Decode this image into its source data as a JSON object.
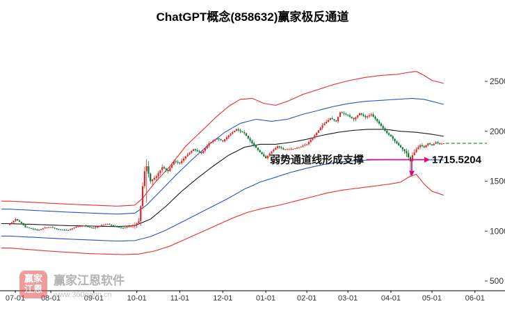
{
  "title": "ChatGPT概念(858632)赢家极反通道",
  "watermark": {
    "brand": "赢家江恩软件",
    "url": "www.360gann.cn",
    "logo_line1": "赢家",
    "logo_line2": "江恩"
  },
  "annotation": {
    "support_text": "弱势通道线形成支撑",
    "support_value_label": "1715.5204",
    "color": "#e5007d"
  },
  "axis": {
    "y_ticks": [
      2500,
      2000,
      1500,
      1000,
      500
    ],
    "x_labels": [
      "07-01",
      "08-01",
      "09-01",
      "10-01",
      "11-01",
      "12-01",
      "01-01",
      "02-01",
      "03-01",
      "04-01",
      "05-01",
      "06-01"
    ],
    "x_label_days": [
      0,
      21,
      43,
      65,
      87,
      109,
      131,
      152,
      173,
      195,
      216,
      238
    ]
  },
  "colors": {
    "up": "#dc2a2a",
    "down": "#0c7a33",
    "axis_text": "#333333",
    "axis_line": "#000000",
    "last_price_line": "#12a12a"
  },
  "chart_data": {
    "type": "candlestick",
    "title": "ChatGPT概念(858632)赢家极反通道",
    "ylim": [
      500,
      2700
    ],
    "x_axis_labels": [
      "07-01",
      "08-01",
      "09-01",
      "10-01",
      "11-01",
      "12-01",
      "01-01",
      "02-01",
      "03-01",
      "04-01",
      "05-01",
      "06-01"
    ],
    "support_level": 1715.5204,
    "last_price_line": 1880,
    "close_control_points": [
      [
        0,
        1070
      ],
      [
        3,
        1120
      ],
      [
        6,
        1080
      ],
      [
        8,
        1040
      ],
      [
        12,
        1020
      ],
      [
        15,
        1010
      ],
      [
        18,
        1035
      ],
      [
        21,
        1040
      ],
      [
        25,
        1015
      ],
      [
        30,
        1010
      ],
      [
        34,
        1045
      ],
      [
        38,
        1055
      ],
      [
        41,
        1035
      ],
      [
        43,
        1030
      ],
      [
        47,
        1060
      ],
      [
        50,
        1070
      ],
      [
        54,
        1045
      ],
      [
        58,
        1030
      ],
      [
        61,
        1050
      ],
      [
        64,
        1060
      ],
      [
        66,
        1100
      ],
      [
        67,
        1250
      ],
      [
        68,
        1450
      ],
      [
        69,
        1600
      ],
      [
        70,
        1650
      ],
      [
        72,
        1500
      ],
      [
        75,
        1550
      ],
      [
        78,
        1640
      ],
      [
        81,
        1600
      ],
      [
        84,
        1700
      ],
      [
        87,
        1680
      ],
      [
        90,
        1750
      ],
      [
        94,
        1820
      ],
      [
        98,
        1780
      ],
      [
        102,
        1880
      ],
      [
        106,
        1930
      ],
      [
        109,
        1900
      ],
      [
        112,
        1960
      ],
      [
        116,
        2020
      ],
      [
        120,
        1980
      ],
      [
        124,
        1880
      ],
      [
        128,
        1790
      ],
      [
        131,
        1730
      ],
      [
        134,
        1800
      ],
      [
        137,
        1850
      ],
      [
        140,
        1820
      ],
      [
        144,
        1820
      ],
      [
        148,
        1840
      ],
      [
        152,
        1870
      ],
      [
        156,
        1960
      ],
      [
        160,
        2060
      ],
      [
        164,
        2130
      ],
      [
        167,
        2100
      ],
      [
        169,
        2190
      ],
      [
        173,
        2160
      ],
      [
        176,
        2120
      ],
      [
        179,
        2180
      ],
      [
        182,
        2140
      ],
      [
        185,
        2170
      ],
      [
        188,
        2100
      ],
      [
        191,
        2030
      ],
      [
        193,
        1980
      ],
      [
        195,
        1950
      ],
      [
        197,
        1900
      ],
      [
        199,
        1860
      ],
      [
        201,
        1820
      ],
      [
        203,
        1780
      ],
      [
        205,
        1700
      ],
      [
        206,
        1760
      ],
      [
        208,
        1820
      ],
      [
        210,
        1860
      ],
      [
        212,
        1840
      ],
      [
        214,
        1880
      ],
      [
        216,
        1860
      ],
      [
        218,
        1890
      ],
      [
        220,
        1870
      ],
      [
        222,
        1880
      ]
    ],
    "volatility_control_points": [
      [
        0,
        22
      ],
      [
        40,
        20
      ],
      [
        60,
        22
      ],
      [
        66,
        90
      ],
      [
        70,
        120
      ],
      [
        74,
        70
      ],
      [
        80,
        50
      ],
      [
        90,
        45
      ],
      [
        100,
        40
      ],
      [
        110,
        40
      ],
      [
        120,
        42
      ],
      [
        131,
        40
      ],
      [
        140,
        35
      ],
      [
        152,
        35
      ],
      [
        160,
        45
      ],
      [
        170,
        45
      ],
      [
        180,
        40
      ],
      [
        190,
        40
      ],
      [
        200,
        45
      ],
      [
        204,
        90
      ],
      [
        206,
        120
      ],
      [
        208,
        60
      ],
      [
        214,
        30
      ],
      [
        222,
        26
      ]
    ],
    "special_wicks": [
      {
        "day": 70,
        "low": 1285,
        "high": 1720
      },
      {
        "day": 205,
        "low": 1552
      }
    ],
    "channel_series": [
      {
        "name": "upper-red-channel-line",
        "color": "#ee2c2c",
        "points": [
          [
            0,
            1300
          ],
          [
            30,
            1270
          ],
          [
            55,
            1250
          ],
          [
            64,
            1260
          ],
          [
            68,
            1330
          ],
          [
            74,
            1480
          ],
          [
            82,
            1650
          ],
          [
            90,
            1850
          ],
          [
            98,
            2000
          ],
          [
            106,
            2150
          ],
          [
            112,
            2250
          ],
          [
            118,
            2320
          ],
          [
            124,
            2330
          ],
          [
            130,
            2280
          ],
          [
            136,
            2260
          ],
          [
            142,
            2300
          ],
          [
            150,
            2370
          ],
          [
            158,
            2420
          ],
          [
            166,
            2470
          ],
          [
            174,
            2510
          ],
          [
            182,
            2540
          ],
          [
            190,
            2560
          ],
          [
            198,
            2570
          ],
          [
            204,
            2590
          ],
          [
            208,
            2600
          ],
          [
            212,
            2560
          ],
          [
            216,
            2510
          ],
          [
            222,
            2480
          ]
        ]
      },
      {
        "name": "upper-blue-channel-line",
        "color": "#2753cc",
        "points": [
          [
            0,
            1220
          ],
          [
            30,
            1190
          ],
          [
            55,
            1170
          ],
          [
            64,
            1180
          ],
          [
            70,
            1260
          ],
          [
            78,
            1420
          ],
          [
            86,
            1580
          ],
          [
            94,
            1730
          ],
          [
            102,
            1870
          ],
          [
            110,
            1990
          ],
          [
            118,
            2080
          ],
          [
            126,
            2120
          ],
          [
            134,
            2100
          ],
          [
            142,
            2120
          ],
          [
            150,
            2170
          ],
          [
            158,
            2210
          ],
          [
            166,
            2250
          ],
          [
            174,
            2280
          ],
          [
            182,
            2300
          ],
          [
            190,
            2310
          ],
          [
            198,
            2320
          ],
          [
            206,
            2330
          ],
          [
            212,
            2320
          ],
          [
            218,
            2290
          ],
          [
            222,
            2270
          ]
        ]
      },
      {
        "name": "middle-black-line",
        "color": "#1a1a1a",
        "points": [
          [
            0,
            1075
          ],
          [
            30,
            1055
          ],
          [
            55,
            1045
          ],
          [
            64,
            1055
          ],
          [
            72,
            1120
          ],
          [
            80,
            1250
          ],
          [
            88,
            1400
          ],
          [
            96,
            1530
          ],
          [
            104,
            1650
          ],
          [
            112,
            1760
          ],
          [
            120,
            1840
          ],
          [
            128,
            1870
          ],
          [
            136,
            1870
          ],
          [
            144,
            1890
          ],
          [
            152,
            1920
          ],
          [
            160,
            1960
          ],
          [
            168,
            1990
          ],
          [
            176,
            2010
          ],
          [
            184,
            2020
          ],
          [
            192,
            2020
          ],
          [
            200,
            2000
          ],
          [
            208,
            1990
          ],
          [
            216,
            1970
          ],
          [
            222,
            1950
          ]
        ]
      },
      {
        "name": "lower-blue-channel-line",
        "color": "#2753cc",
        "points": [
          [
            0,
            950
          ],
          [
            30,
            920
          ],
          [
            55,
            900
          ],
          [
            64,
            905
          ],
          [
            72,
            945
          ],
          [
            80,
            1010
          ],
          [
            88,
            1090
          ],
          [
            96,
            1170
          ],
          [
            104,
            1250
          ],
          [
            112,
            1330
          ],
          [
            120,
            1420
          ],
          [
            128,
            1490
          ],
          [
            136,
            1540
          ],
          [
            144,
            1590
          ],
          [
            152,
            1630
          ],
          [
            160,
            1665
          ],
          [
            168,
            1690
          ],
          [
            176,
            1705
          ],
          [
            184,
            1712
          ],
          [
            192,
            1716
          ],
          [
            200,
            1715
          ],
          [
            208,
            1715
          ],
          [
            216,
            1714
          ],
          [
            222,
            1713
          ]
        ]
      },
      {
        "name": "lower-red-channel-line",
        "color": "#ee2c2c",
        "points": [
          [
            0,
            830
          ],
          [
            20,
            800
          ],
          [
            40,
            775
          ],
          [
            58,
            765
          ],
          [
            66,
            770
          ],
          [
            74,
            800
          ],
          [
            82,
            850
          ],
          [
            90,
            920
          ],
          [
            98,
            990
          ],
          [
            106,
            1060
          ],
          [
            114,
            1130
          ],
          [
            122,
            1190
          ],
          [
            130,
            1230
          ],
          [
            138,
            1260
          ],
          [
            146,
            1300
          ],
          [
            154,
            1340
          ],
          [
            162,
            1380
          ],
          [
            170,
            1410
          ],
          [
            178,
            1430
          ],
          [
            186,
            1450
          ],
          [
            194,
            1470
          ],
          [
            200,
            1490
          ],
          [
            204,
            1540
          ],
          [
            208,
            1570
          ],
          [
            212,
            1470
          ],
          [
            216,
            1400
          ],
          [
            222,
            1360
          ]
        ]
      }
    ]
  }
}
